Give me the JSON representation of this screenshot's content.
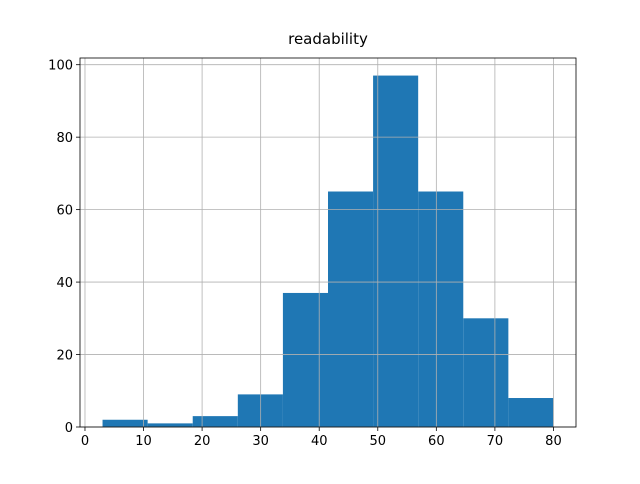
{
  "chart_data": {
    "type": "histogram",
    "title": "readability",
    "bins": [
      3,
      10.7,
      18.4,
      26.1,
      33.8,
      41.5,
      49.2,
      56.9,
      64.6,
      72.3,
      80
    ],
    "values": [
      2,
      1,
      3,
      9,
      37,
      65,
      97,
      65,
      30,
      8
    ],
    "color": "#1f77b4",
    "xlim": [
      -0.85,
      83.85
    ],
    "xticks": [
      0,
      10,
      20,
      30,
      40,
      50,
      60,
      70,
      80
    ],
    "ylim": [
      0,
      101.85
    ],
    "yticks": [
      0,
      20,
      40,
      60,
      80,
      100
    ],
    "grid": true
  }
}
